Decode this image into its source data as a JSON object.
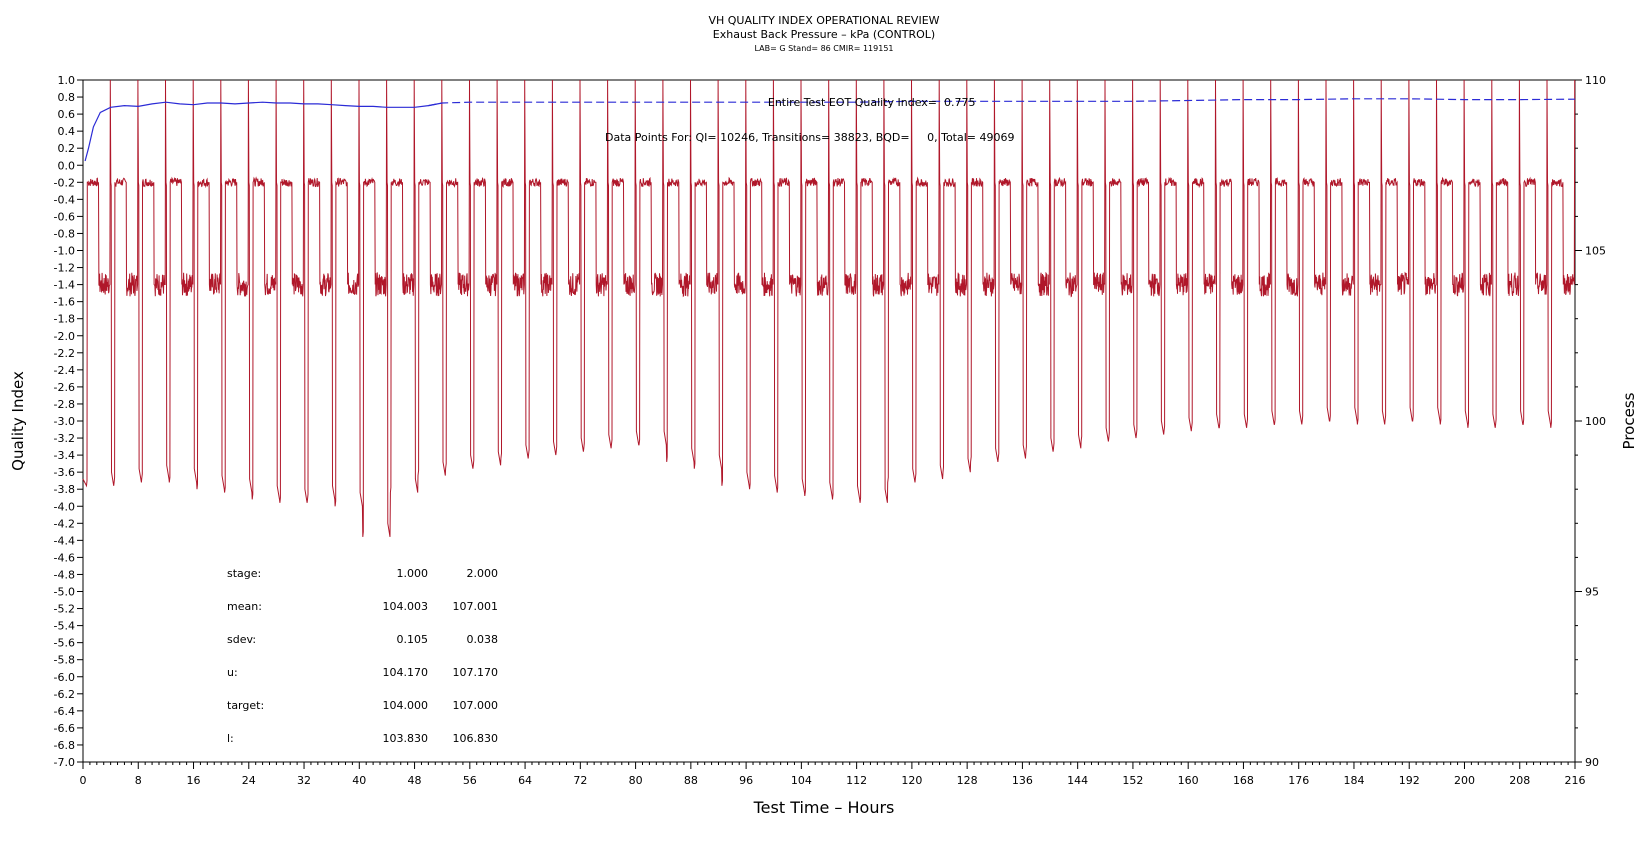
{
  "chart_data": {
    "type": "line",
    "title": "VH QUALITY INDEX OPERATIONAL REVIEW",
    "subtitle": "Exhaust Back Pressure – kPa (CONTROL)",
    "subtitle2": "LAB= G Stand= 86 CMIR= 119151",
    "xlabel": "Test Time – Hours",
    "ylabel_left": "Quality Index",
    "ylabel_right": "Process",
    "xlim": [
      0,
      216
    ],
    "ylim_left": [
      -7.0,
      1.0
    ],
    "ylim_right": [
      90,
      110
    ],
    "x_ticks": [
      0,
      8,
      16,
      24,
      32,
      40,
      48,
      56,
      64,
      72,
      80,
      88,
      96,
      104,
      112,
      120,
      128,
      136,
      144,
      152,
      160,
      168,
      176,
      184,
      192,
      200,
      208,
      216
    ],
    "y_left_ticks": [
      "1.0",
      "0.8",
      "0.6",
      "0.4",
      "0.2",
      "0.0",
      "-0.2",
      "-0.4",
      "-0.6",
      "-0.8",
      "-1.0",
      "-1.2",
      "-1.4",
      "-1.6",
      "-1.8",
      "-2.0",
      "-2.2",
      "-2.4",
      "-2.6",
      "-2.8",
      "-3.0",
      "-3.2",
      "-3.4",
      "-3.6",
      "-3.8",
      "-4.0",
      "-4.2",
      "-4.4",
      "-4.6",
      "-4.8",
      "-5.0",
      "-5.2",
      "-5.4",
      "-5.6",
      "-5.8",
      "-6.0",
      "-6.2",
      "-6.4",
      "-6.6",
      "-6.8",
      "-7.0"
    ],
    "y_right_ticks": [
      90,
      95,
      100,
      105,
      110
    ],
    "annotations": {
      "eot_label": "Entire Test EOT Quality Index=",
      "eot_value": "0.775",
      "datapoints": "Data Points For: QI= 10246, Transitions= 38823, BQD=     0, Total= 49069"
    },
    "stats_table": [
      [
        "stage:",
        "1.000",
        "2.000"
      ],
      [
        "mean:",
        "104.003",
        "107.001"
      ],
      [
        "sdev:",
        "0.105",
        "0.038"
      ],
      [
        "u:",
        "104.170",
        "107.170"
      ],
      [
        "target:",
        "104.000",
        "107.000"
      ],
      [
        "l:",
        "103.830",
        "106.830"
      ]
    ],
    "series": [
      {
        "axis": "left",
        "color": "#2b2bd6",
        "style": "solid-then-dashed",
        "points": [
          [
            0.3,
            0.05
          ],
          [
            0.8,
            0.2
          ],
          [
            1.5,
            0.45
          ],
          [
            2.5,
            0.62
          ],
          [
            4,
            0.68
          ],
          [
            6,
            0.7
          ],
          [
            8,
            0.69
          ],
          [
            10,
            0.72
          ],
          [
            12,
            0.74
          ],
          [
            14,
            0.72
          ],
          [
            16,
            0.71
          ],
          [
            18,
            0.73
          ],
          [
            20,
            0.73
          ],
          [
            22,
            0.72
          ],
          [
            24,
            0.73
          ],
          [
            26,
            0.74
          ],
          [
            28,
            0.73
          ],
          [
            30,
            0.73
          ],
          [
            32,
            0.72
          ],
          [
            34,
            0.72
          ],
          [
            36,
            0.71
          ],
          [
            38,
            0.7
          ],
          [
            40,
            0.69
          ],
          [
            42,
            0.69
          ],
          [
            44,
            0.68
          ],
          [
            46,
            0.68
          ],
          [
            48,
            0.68
          ],
          [
            50,
            0.7
          ],
          [
            52,
            0.73
          ],
          [
            56,
            0.74
          ],
          [
            64,
            0.74
          ],
          [
            72,
            0.74
          ],
          [
            80,
            0.74
          ],
          [
            88,
            0.74
          ],
          [
            96,
            0.74
          ],
          [
            104,
            0.74
          ],
          [
            112,
            0.74
          ],
          [
            120,
            0.75
          ],
          [
            128,
            0.75
          ],
          [
            136,
            0.75
          ],
          [
            144,
            0.75
          ],
          [
            152,
            0.75
          ],
          [
            160,
            0.76
          ],
          [
            168,
            0.77
          ],
          [
            176,
            0.77
          ],
          [
            184,
            0.78
          ],
          [
            192,
            0.78
          ],
          [
            200,
            0.77
          ],
          [
            208,
            0.77
          ],
          [
            216,
            0.775
          ]
        ]
      },
      {
        "axis": "right",
        "color": "#b0172a",
        "style": "cyclic-process",
        "cycle_hours": 4,
        "cycle_start_hours": 0.5,
        "stage1_mean": 104.003,
        "stage2_mean": 107.001,
        "spike_top": 110,
        "trough_values": [
          98.1,
          98.2,
          98.3,
          98.2,
          98.0,
          97.9,
          97.7,
          97.6,
          97.7,
          97.5,
          96.6,
          97.9,
          98.4,
          98.6,
          98.7,
          98.9,
          99.0,
          99.1,
          99.2,
          99.3,
          99.3,
          98.8,
          98.6,
          98.1,
          98.0,
          97.9,
          97.8,
          97.7,
          97.6,
          98.2,
          98.3,
          98.5,
          98.8,
          98.9,
          99.1,
          99.2,
          99.4,
          99.5,
          99.6,
          99.7,
          99.8,
          99.8,
          99.9,
          99.9,
          100.0,
          100.0,
          99.9,
          100.0,
          100.0,
          99.9,
          99.8,
          99.9,
          99.9,
          99.8
        ]
      }
    ]
  }
}
